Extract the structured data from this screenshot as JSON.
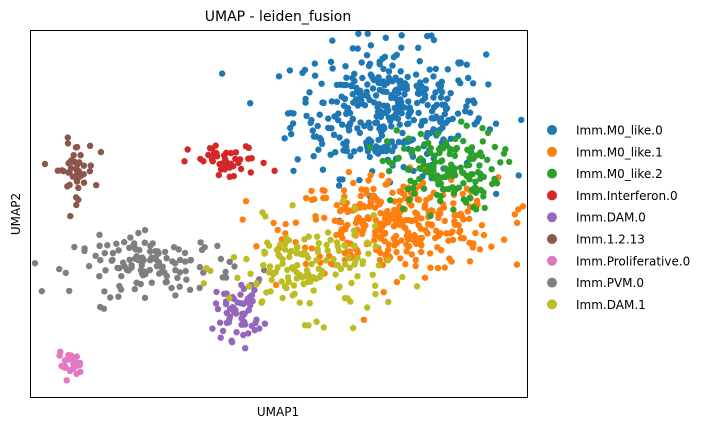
{
  "chart_data": {
    "type": "scatter",
    "title": "UMAP - leiden_fusion",
    "xlabel": "UMAP1",
    "ylabel": "UMAP2",
    "grid": false,
    "axis_ticks": false,
    "legend_position": "right",
    "xlim": [
      0,
      100
    ],
    "ylim": [
      0,
      100
    ],
    "series": [
      {
        "name": "Imm.M0_like.0",
        "color": "#1f77b4",
        "n": 380,
        "center": [
          72,
          78
        ],
        "spread": [
          12,
          11
        ]
      },
      {
        "name": "Imm.M0_like.1",
        "color": "#ff7f0e",
        "n": 330,
        "center": [
          73,
          47
        ],
        "spread": [
          13,
          8
        ]
      },
      {
        "name": "Imm.M0_like.2",
        "color": "#2ca02c",
        "n": 150,
        "center": [
          83,
          62
        ],
        "spread": [
          7,
          7
        ]
      },
      {
        "name": "Imm.Interferon.0",
        "color": "#d62728",
        "n": 45,
        "center": [
          40,
          64
        ],
        "spread": [
          5,
          3
        ]
      },
      {
        "name": "Imm.DAM.0",
        "color": "#9467bd",
        "n": 60,
        "center": [
          42,
          24
        ],
        "spread": [
          3,
          5
        ]
      },
      {
        "name": "Imm.1.2.13",
        "color": "#8c564b",
        "n": 45,
        "center": [
          9,
          62
        ],
        "spread": [
          2.5,
          5
        ]
      },
      {
        "name": "Imm.Proliferative.0",
        "color": "#e377c2",
        "n": 25,
        "center": [
          8,
          9
        ],
        "spread": [
          1.5,
          2
        ]
      },
      {
        "name": "Imm.PVM.0",
        "color": "#7f7f7f",
        "n": 130,
        "center": [
          25,
          36
        ],
        "spread": [
          10,
          5
        ]
      },
      {
        "name": "Imm.DAM.1",
        "color": "#bcbd22",
        "n": 150,
        "center": [
          56,
          35
        ],
        "spread": [
          10,
          8
        ]
      }
    ]
  }
}
